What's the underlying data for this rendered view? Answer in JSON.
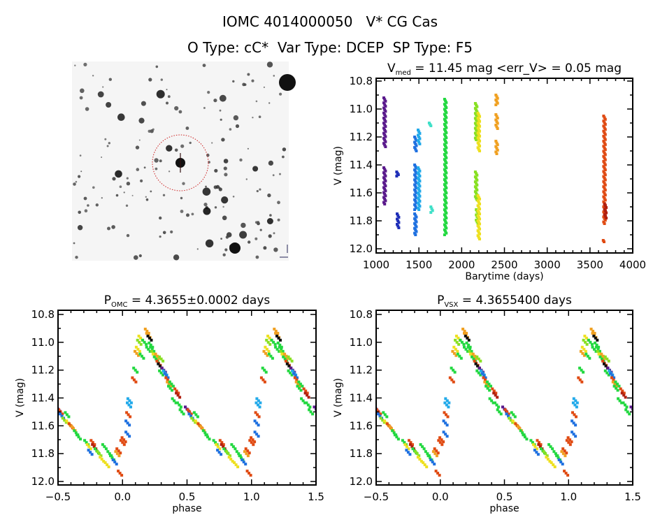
{
  "header": {
    "title": "IOMC 4014000050   V* CG Cas",
    "subtitle": "O Type: cC*  Var Type: DCEP  SP Type: F5"
  },
  "palette": {
    "purple": "#5a1a8c",
    "navy": "#1f2fb8",
    "blue": "#1e70e0",
    "cyan": "#22aaea",
    "teal": "#40e0c8",
    "green": "#22d840",
    "lightgreen": "#88e022",
    "yellow": "#eee020",
    "orange": "#f0a020",
    "red": "#e04a12",
    "darkred": "#b02010",
    "black": "#101010"
  },
  "image_panel": {
    "type": "sky-image",
    "circle_color": "#cc2020"
  },
  "chart_data": [
    {
      "type": "scatter",
      "title_prefix": "V",
      "title_sub": "med",
      "title_rest": " = 11.45 mag <err_V> = 0.05 mag",
      "xlabel": "Barytime (days)",
      "ylabel": "V (mag)",
      "xlim": [
        1000,
        4000
      ],
      "ylim": [
        12.03,
        10.78
      ],
      "xticks": [
        "1000",
        "1500",
        "2000",
        "2500",
        "3000",
        "3500",
        "4000"
      ],
      "yticks": [
        "10.8",
        "11.0",
        "11.2",
        "11.4",
        "11.6",
        "11.8",
        "12.0"
      ],
      "segments": [
        [
          1100,
          10.92,
          11.27,
          "purple"
        ],
        [
          1100,
          11.42,
          11.68,
          "purple"
        ],
        [
          1250,
          11.45,
          11.48,
          "navy"
        ],
        [
          1255,
          11.75,
          11.85,
          "navy"
        ],
        [
          1460,
          11.2,
          11.3,
          "blue"
        ],
        [
          1460,
          11.4,
          11.72,
          "blue"
        ],
        [
          1460,
          11.75,
          11.9,
          "blue"
        ],
        [
          1500,
          11.15,
          11.25,
          "cyan"
        ],
        [
          1500,
          11.42,
          11.72,
          "cyan"
        ],
        [
          1630,
          11.1,
          11.12,
          "teal"
        ],
        [
          1650,
          11.7,
          11.74,
          "teal"
        ],
        [
          1810,
          10.93,
          11.9,
          "green"
        ],
        [
          2170,
          10.96,
          11.22,
          "lightgreen"
        ],
        [
          2170,
          11.45,
          11.65,
          "lightgreen"
        ],
        [
          2180,
          11.72,
          11.82,
          "lightgreen"
        ],
        [
          2200,
          11.03,
          11.3,
          "yellow"
        ],
        [
          2200,
          11.62,
          11.93,
          "yellow"
        ],
        [
          2410,
          10.9,
          10.97,
          "orange"
        ],
        [
          2410,
          11.04,
          11.14,
          "orange"
        ],
        [
          2410,
          11.23,
          11.32,
          "orange"
        ],
        [
          3670,
          11.05,
          11.82,
          "red"
        ],
        [
          3680,
          11.68,
          11.78,
          "darkred"
        ],
        [
          3665,
          11.94,
          11.95,
          "red"
        ]
      ]
    },
    {
      "type": "scatter",
      "title_prefix": "P",
      "title_sub": "OMC",
      "title_rest": " = 4.3655±0.0002 days",
      "xlabel": "phase",
      "ylabel": "V (mag)",
      "xlim": [
        -0.5,
        1.5
      ],
      "ylim": [
        12.025,
        10.77
      ],
      "xticks": [
        "-0.5",
        "0.0",
        "0.5",
        "1.0",
        "1.5"
      ],
      "yticks": [
        "10.8",
        "11.0",
        "11.2",
        "11.4",
        "11.6",
        "11.8",
        "12.0"
      ],
      "points_ref": "phased_points"
    },
    {
      "type": "scatter",
      "title_prefix": "P",
      "title_sub": "VSX",
      "title_rest": " = 4.3655400 days",
      "xlabel": "phase",
      "ylabel": "V (mag)",
      "xlim": [
        -0.5,
        1.5
      ],
      "ylim": [
        12.025,
        10.77
      ],
      "xticks": [
        "-0.5",
        "0.0",
        "0.5",
        "1.0",
        "1.5"
      ],
      "yticks": [
        "10.8",
        "11.0",
        "11.2",
        "11.4",
        "11.6",
        "11.8",
        "12.0"
      ],
      "points_ref": "phased_points"
    }
  ],
  "phased_points": [
    [
      0.0,
      11.72,
      "red"
    ],
    [
      0.01,
      11.7,
      "red"
    ],
    [
      0.04,
      11.58,
      "blue"
    ],
    [
      0.04,
      11.66,
      "blue"
    ],
    [
      0.045,
      11.52,
      "red"
    ],
    [
      0.05,
      11.45,
      "cyan"
    ],
    [
      0.055,
      11.42,
      "cyan"
    ],
    [
      0.09,
      11.27,
      "red"
    ],
    [
      0.1,
      11.2,
      "green"
    ],
    [
      0.11,
      11.08,
      "orange"
    ],
    [
      0.12,
      11.05,
      "yellow"
    ],
    [
      0.13,
      11.0,
      "lightgreen"
    ],
    [
      0.14,
      10.97,
      "yellow"
    ],
    [
      0.15,
      11.1,
      "green"
    ],
    [
      0.17,
      11.0,
      "green"
    ],
    [
      0.19,
      10.92,
      "orange"
    ],
    [
      0.2,
      10.95,
      "orange"
    ],
    [
      0.2,
      11.05,
      "green"
    ],
    [
      0.21,
      10.97,
      "black"
    ],
    [
      0.22,
      11.02,
      "green"
    ],
    [
      0.23,
      11.05,
      "green"
    ],
    [
      0.24,
      11.08,
      "lightgreen"
    ],
    [
      0.25,
      11.1,
      "yellow"
    ],
    [
      0.26,
      11.12,
      "green"
    ],
    [
      0.27,
      11.1,
      "orange"
    ],
    [
      0.28,
      11.15,
      "red"
    ],
    [
      0.29,
      11.17,
      "black"
    ],
    [
      0.3,
      11.22,
      "green"
    ],
    [
      0.3,
      11.12,
      "lightgreen"
    ],
    [
      0.32,
      11.2,
      "purple"
    ],
    [
      0.33,
      11.22,
      "cyan"
    ],
    [
      0.34,
      11.24,
      "blue"
    ],
    [
      0.35,
      11.27,
      "red"
    ],
    [
      0.36,
      11.3,
      "orange"
    ],
    [
      0.37,
      11.33,
      "green"
    ],
    [
      0.38,
      11.3,
      "green"
    ],
    [
      0.4,
      11.42,
      "green"
    ],
    [
      0.42,
      11.35,
      "red"
    ],
    [
      0.43,
      11.38,
      "darkred"
    ],
    [
      0.44,
      11.45,
      "green"
    ],
    [
      0.46,
      11.5,
      "green"
    ],
    [
      0.5,
      11.48,
      "purple"
    ],
    [
      0.52,
      11.5,
      "red"
    ],
    [
      0.53,
      11.53,
      "blue"
    ],
    [
      0.55,
      11.56,
      "lightgreen"
    ],
    [
      0.57,
      11.52,
      "green"
    ],
    [
      0.58,
      11.58,
      "yellow"
    ],
    [
      0.6,
      11.6,
      "red"
    ],
    [
      0.62,
      11.62,
      "orange"
    ],
    [
      0.64,
      11.65,
      "green"
    ],
    [
      0.66,
      11.68,
      "green"
    ],
    [
      0.72,
      11.72,
      "green"
    ],
    [
      0.74,
      11.75,
      "yellow"
    ],
    [
      0.75,
      11.79,
      "blue"
    ],
    [
      0.77,
      11.72,
      "red"
    ],
    [
      0.78,
      11.75,
      "darkred"
    ],
    [
      0.8,
      11.78,
      "green"
    ],
    [
      0.82,
      11.8,
      "lightgreen"
    ],
    [
      0.84,
      11.84,
      "yellow"
    ],
    [
      0.86,
      11.75,
      "green"
    ],
    [
      0.88,
      11.88,
      "yellow"
    ],
    [
      0.9,
      11.8,
      "green"
    ],
    [
      0.92,
      11.83,
      "green"
    ],
    [
      0.94,
      11.86,
      "blue"
    ],
    [
      0.96,
      11.8,
      "orange"
    ],
    [
      0.97,
      11.78,
      "red"
    ],
    [
      0.98,
      11.94,
      "red"
    ]
  ]
}
